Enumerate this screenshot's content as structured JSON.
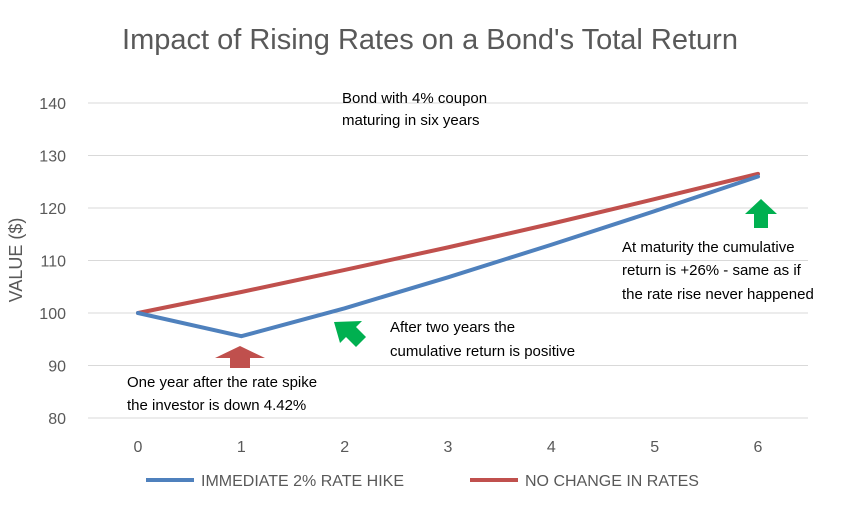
{
  "chart_data": {
    "type": "line",
    "title": "Impact of Rising Rates on a Bond's Total Return",
    "xlabel": "",
    "ylabel": "VALUE ($)",
    "x": [
      0,
      1,
      2,
      3,
      4,
      5,
      6
    ],
    "xlim": [
      0,
      6
    ],
    "ylim": [
      80,
      140
    ],
    "y_ticks": [
      80,
      90,
      100,
      110,
      120,
      130,
      140
    ],
    "grid": true,
    "legend_position": "bottom",
    "series": [
      {
        "name": "IMMEDIATE 2% RATE HIKE",
        "color": "#4f81bd",
        "values": [
          100,
          95.58,
          100.9,
          106.8,
          113.0,
          119.4,
          126.0
        ]
      },
      {
        "name": "NO CHANGE IN RATES",
        "color": "#c0504d",
        "values": [
          100,
          104.0,
          108.2,
          112.5,
          117.0,
          121.7,
          126.5
        ]
      }
    ],
    "annotations": [
      {
        "id": "coupon",
        "lines": [
          "Bond with 4% coupon",
          "maturing in six years"
        ]
      },
      {
        "id": "year1",
        "lines": [
          "One year after the rate spike",
          "the investor is down 4.42%"
        ],
        "arrow_color": "#c0504d",
        "arrow_direction": "up"
      },
      {
        "id": "year2",
        "lines": [
          "After two years the",
          "cumulative return is positive"
        ],
        "arrow_color": "#00b050",
        "arrow_direction": "up-left"
      },
      {
        "id": "maturity",
        "lines": [
          "At maturity the cumulative",
          "return is +26% - same as if",
          "the rate rise never happened"
        ],
        "arrow_color": "#00b050",
        "arrow_direction": "up"
      }
    ]
  }
}
